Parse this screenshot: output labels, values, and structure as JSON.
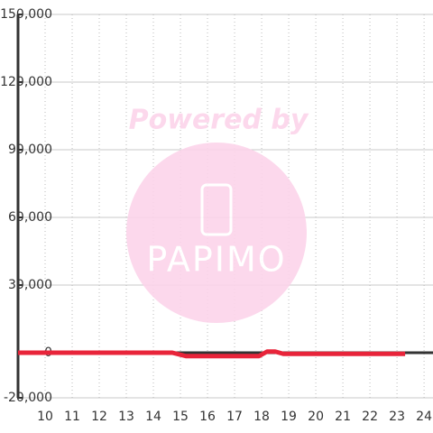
{
  "chart_data": {
    "type": "line",
    "watermark": {
      "top": "Powered by",
      "logo": "PAPIMO"
    },
    "xlim": [
      9,
      24.33
    ],
    "ylim": [
      -20000,
      150000
    ],
    "xticks": [
      10,
      11,
      12,
      13,
      14,
      15,
      16,
      17,
      18,
      19,
      20,
      21,
      22,
      23,
      24
    ],
    "yticks": [
      {
        "value": -20000,
        "label": "-20,000"
      },
      0,
      {
        "value": 30000,
        "label": "30,000"
      },
      {
        "value": 60000,
        "label": "60,000"
      },
      {
        "value": 90000,
        "label": "90,000"
      },
      {
        "value": 120000,
        "label": "120,000"
      },
      {
        "value": 150000,
        "label": "150,000"
      }
    ],
    "grid": true,
    "series": [
      {
        "color": "#e8243a",
        "x": [
          9,
          14.7,
          15.2,
          17.9,
          18.2,
          18.5,
          18.8,
          23.3
        ],
        "values": [
          0,
          0,
          -1500,
          -1500,
          500,
          500,
          -500,
          -500
        ]
      }
    ]
  }
}
